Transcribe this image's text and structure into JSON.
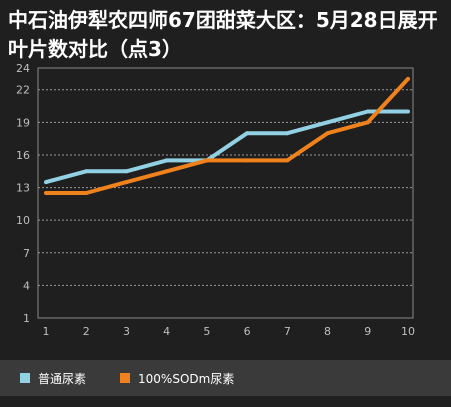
{
  "chart_data": {
    "type": "line",
    "title": "中石油伊犁农四师67团甜菜大区：5月28日展开叶片数对比（点3）",
    "x": [
      1,
      2,
      3,
      4,
      5,
      6,
      7,
      8,
      9,
      10
    ],
    "y_ticks": [
      1,
      4,
      7,
      10,
      13,
      16,
      19,
      22,
      24
    ],
    "ylim": [
      1,
      24
    ],
    "xlim": [
      1,
      10
    ],
    "grid": "horizontal dotted",
    "legend_position": "bottom",
    "series": [
      {
        "name": "普通尿素",
        "color": "#92d1e3",
        "values": [
          13.5,
          14.5,
          14.5,
          15.5,
          15.5,
          18,
          18,
          19,
          20,
          20
        ]
      },
      {
        "name": "100%SODm尿素",
        "color": "#f0821e",
        "values": [
          12.5,
          12.5,
          13.5,
          14.5,
          15.5,
          15.5,
          15.5,
          18,
          19,
          23
        ]
      }
    ]
  }
}
